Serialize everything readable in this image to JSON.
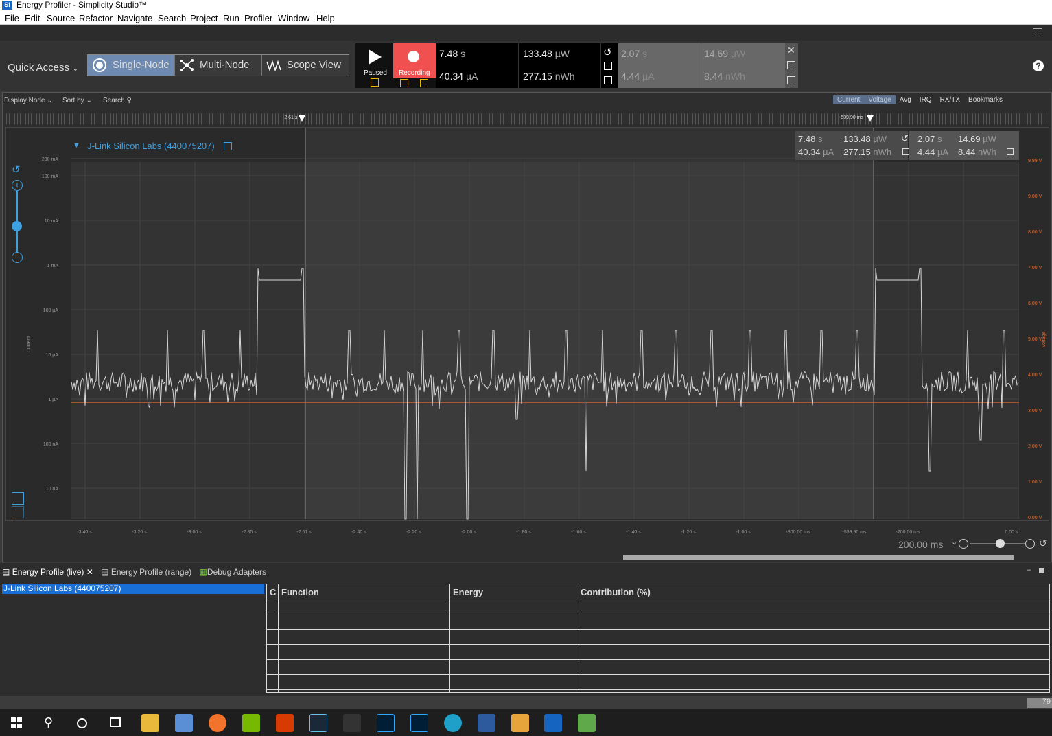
{
  "app": {
    "title": "Energy Profiler - Simplicity Studio™"
  },
  "menu": [
    "File",
    "Edit",
    "Source",
    "Refactor",
    "Navigate",
    "Search",
    "Project",
    "Run",
    "Profiler",
    "Window",
    "Help"
  ],
  "quick_access": "Quick Access",
  "modes": {
    "single": "Single-Node",
    "multi": "Multi-Node",
    "scope": "Scope View"
  },
  "recording": {
    "paused": "Paused",
    "recording": "Recording"
  },
  "live": {
    "time": "7.48",
    "time_u": "s",
    "current": "40.34",
    "current_u": "µA",
    "power": "133.48",
    "power_u": "µW",
    "energy": "277.15",
    "energy_u": "nWh"
  },
  "range": {
    "time": "2.07",
    "time_u": "s",
    "current": "4.44",
    "current_u": "µA",
    "power": "14.69",
    "power_u": "µW",
    "energy": "8.44",
    "energy_u": "nWh"
  },
  "subtool": {
    "display_node": "Display Node",
    "sort_by": "Sort by",
    "search": "Search"
  },
  "view_tabs": [
    "Current",
    "Voltage",
    "Avg",
    "IRQ",
    "RX/TX",
    "Bookmarks"
  ],
  "markers": {
    "left": "-2.61 s",
    "right": "-539.90 ms"
  },
  "node": "J-Link Silicon Labs (440075207)",
  "y_axis_current": {
    "title": "Current",
    "ticks": [
      "230 mA",
      "100 mA",
      "10 mA",
      "1 mA",
      "100 µA",
      "10 µA",
      "1 µA",
      "100 nA",
      "10 nA"
    ]
  },
  "y_axis_voltage": {
    "title": "Voltage",
    "ticks": [
      "9.99 V",
      "9.00 V",
      "8.00 V",
      "7.00 V",
      "6.00 V",
      "5.00 V",
      "4.00 V",
      "3.00 V",
      "2.00 V",
      "1.00 V",
      "0.00 V"
    ]
  },
  "x_axis": {
    "ticks": [
      "-3.40 s",
      "-3.20 s",
      "-3.00 s",
      "-2.80 s",
      "-2.61 s",
      "-2.40 s",
      "-2.20 s",
      "-2.00 s",
      "-1.80 s",
      "-1.60 s",
      "-1.40 s",
      "-1.20 s",
      "-1.00 s",
      "-800.00 ms",
      "-539.90 ms",
      "-200.00 ms",
      "0.00 s"
    ]
  },
  "zoom": "200.00 ms",
  "colors": {
    "voltage": "#e86a2c",
    "current": "#d8d8d8",
    "accent": "#3da0e0",
    "selection": "#ff5050"
  },
  "bottom_tabs": {
    "live": "Energy Profile (live)",
    "range": "Energy Profile (range)",
    "adapters": "Debug Adapters"
  },
  "adapter_item": "J-Link Silicon Labs (440075207)",
  "table": {
    "headers": [
      "C",
      "Function",
      "Energy",
      "Contribution (%)"
    ]
  },
  "status_right": "79"
}
